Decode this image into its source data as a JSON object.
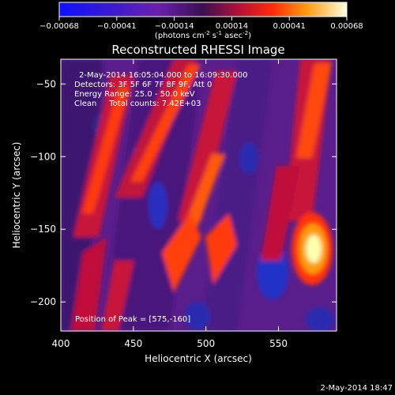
{
  "chart_data": {
    "type": "heatmap",
    "title": "Reconstructed RHESSI Image",
    "xlabel": "Heliocentric X (arcsec)",
    "ylabel": "Heliocentric Y (arcsec)",
    "xlim": [
      400,
      590
    ],
    "ylim": [
      -220,
      -33
    ],
    "x_ticks": [
      400,
      450,
      500,
      550
    ],
    "y_ticks": [
      -50,
      -100,
      -150,
      -200
    ],
    "colorbar": {
      "range": [
        -0.00068,
        0.00068
      ],
      "ticks": [
        "-0.00068",
        "-0.00041",
        "-0.00014",
        "0.00014",
        "0.00041",
        "0.00068"
      ],
      "label_main": "(photons cm",
      "label_sup1": "-2",
      "label_mid1": " s",
      "label_sup2": "-1",
      "label_mid2": " asec",
      "label_sup3": "-2",
      "label_end": ")"
    },
    "annotations": {
      "time_range": "2-May-2014 16:05:04.000 to 16:09:30.000",
      "detectors": "Detectors: 3F 5F 6F 7F 8F 9F, Att 0",
      "energy": "Energy Range: 25.0 - 50.0 keV",
      "clean": "Clean     Total counts: 7.42E+03",
      "peak": "Position of Peak = [575,-160]"
    },
    "peak_position": [
      575,
      -160
    ],
    "grid": false
  },
  "footer": {
    "timestamp": "2-May-2014 18:47"
  }
}
